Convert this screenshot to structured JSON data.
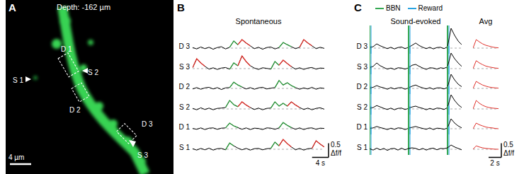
{
  "image_panel": {
    "panel": "A",
    "title": "Depth: -162 µm",
    "labels": [
      "S 1",
      "D 1",
      "S 2",
      "D 2",
      "D 3",
      "S 3"
    ],
    "scale_bar": {
      "value": 4,
      "label": "4 µm"
    }
  },
  "chart_data": [
    {
      "type": "line",
      "panel": "B",
      "title": "Spontaneous",
      "xlim": [
        0,
        32
      ],
      "ylim": [
        -0.2,
        0.8
      ],
      "tick_labels": false,
      "baseline": 0,
      "color": "#000000",
      "x": [
        0,
        1,
        2,
        3,
        4,
        5,
        6,
        7,
        8,
        9,
        10,
        11,
        12,
        13,
        14,
        15,
        16,
        17,
        18,
        19,
        20,
        21,
        22,
        23,
        24,
        25,
        26,
        27,
        28,
        29,
        30,
        31,
        32
      ],
      "rows": [
        {
          "name": "D 3",
          "values": [
            0.02,
            -0.03,
            0.04,
            -0.02,
            0.03,
            -0.04,
            0.02,
            0.05,
            -0.03,
            0.03,
            0.25,
            0.12,
            0.3,
            0.18,
            0.08,
            -0.02,
            0.03,
            -0.04,
            0.02,
            0.04,
            -0.03,
            0.02,
            0.2,
            0.12,
            0.05,
            -0.02,
            0.03,
            0.3,
            0.18,
            0.08,
            -0.02,
            0.03,
            -0.01
          ],
          "events": [
            {
              "color": "#2e9e3e",
              "x": [
                9,
                11
              ]
            },
            {
              "color": "#e0302a",
              "x": [
                11,
                14
              ]
            },
            {
              "color": "#2e9e3e",
              "x": [
                21,
                24
              ]
            },
            {
              "color": "#e0302a",
              "x": [
                26,
                29
              ]
            }
          ]
        },
        {
          "name": "S 3",
          "values": [
            0.03,
            0.35,
            0.2,
            0.08,
            -0.02,
            0.03,
            -0.03,
            0.02,
            0.04,
            -0.02,
            0.2,
            0.1,
            0.45,
            0.25,
            0.1,
            0.02,
            -0.03,
            0.03,
            0.01,
            -0.02,
            0.25,
            0.12,
            0.3,
            0.18,
            0.07,
            -0.02,
            0.03,
            -0.03,
            0.02,
            0.04,
            -0.02,
            0.02,
            0.01
          ],
          "events": [
            {
              "color": "#e0302a",
              "x": [
                0,
                3
              ]
            },
            {
              "color": "#2e9e3e",
              "x": [
                9,
                11
              ]
            },
            {
              "color": "#e0302a",
              "x": [
                11,
                14
              ]
            },
            {
              "color": "#2e9e3e",
              "x": [
                19,
                21
              ]
            },
            {
              "color": "#e0302a",
              "x": [
                21,
                24
              ]
            }
          ]
        },
        {
          "name": "D 2",
          "values": [
            -0.02,
            0.03,
            -0.03,
            0.02,
            0.04,
            -0.02,
            0.03,
            -0.04,
            0.02,
            0.03,
            0.22,
            0.12,
            0.05,
            -0.02,
            0.03,
            -0.03,
            0.02,
            0.04,
            -0.02,
            0.01,
            0.03,
            0.28,
            0.12,
            0.2,
            0.1,
            0.03,
            -0.03,
            0.02,
            -0.02,
            0.04,
            -0.03,
            0.02,
            0.0
          ],
          "events": [
            {
              "color": "#2e9e3e",
              "x": [
                9,
                12
              ]
            },
            {
              "color": "#2e9e3e",
              "x": [
                20,
                25
              ]
            }
          ]
        },
        {
          "name": "S 2",
          "values": [
            0.02,
            -0.03,
            0.04,
            -0.02,
            0.03,
            -0.03,
            0.02,
            0.03,
            0.05,
            0.3,
            0.15,
            0.08,
            0.25,
            0.14,
            0.05,
            -0.02,
            0.03,
            -0.03,
            0.02,
            0.03,
            0.25,
            0.1,
            0.2,
            0.1,
            0.25,
            0.14,
            0.05,
            -0.02,
            0.03,
            -0.03,
            0.02,
            0.04,
            -0.01
          ],
          "events": [
            {
              "color": "#2e9e3e",
              "x": [
                8,
                11
              ]
            },
            {
              "color": "#e0302a",
              "x": [
                11,
                14
              ]
            },
            {
              "color": "#2e9e3e",
              "x": [
                19,
                23
              ]
            },
            {
              "color": "#e0302a",
              "x": [
                23,
                26
              ]
            }
          ]
        },
        {
          "name": "D 1",
          "values": [
            0.01,
            -0.02,
            0.03,
            -0.03,
            0.02,
            0.03,
            -0.02,
            0.02,
            0.03,
            0.2,
            0.1,
            0.04,
            -0.02,
            0.03,
            -0.03,
            0.02,
            0.01,
            -0.03,
            0.03,
            0.02,
            -0.02,
            0.03,
            0.22,
            0.12,
            0.04,
            -0.02,
            0.03,
            -0.03,
            0.02,
            0.03,
            -0.02,
            0.02,
            0.01
          ],
          "events": [
            {
              "color": "#2e9e3e",
              "x": [
                8,
                11
              ]
            },
            {
              "color": "#2e9e3e",
              "x": [
                21,
                24
              ]
            }
          ]
        },
        {
          "name": "S 1",
          "values": [
            0.02,
            -0.03,
            0.03,
            -0.02,
            0.04,
            -0.03,
            0.02,
            0.03,
            -0.02,
            0.22,
            0.12,
            0.04,
            -0.02,
            0.03,
            -0.03,
            0.02,
            0.03,
            -0.02,
            0.02,
            0.03,
            0.25,
            0.12,
            0.35,
            0.2,
            0.08,
            -0.02,
            0.03,
            -0.03,
            0.02,
            0.03,
            0.3,
            0.18,
            0.08
          ],
          "events": [
            {
              "color": "#2e9e3e",
              "x": [
                8,
                10
              ]
            },
            {
              "color": "#2e9e3e",
              "x": [
                19,
                21
              ]
            },
            {
              "color": "#e0302a",
              "x": [
                21,
                24
              ]
            },
            {
              "color": "#e0302a",
              "x": [
                29,
                32
              ]
            }
          ]
        }
      ],
      "scale_bar": {
        "x": 4,
        "x_label": "4 s",
        "y": 0.5,
        "y_label": "0.5",
        "y_unit": "Δf/f"
      }
    },
    {
      "type": "line",
      "panel": "C",
      "title": "Sound-evoked",
      "xlim": [
        0,
        13
      ],
      "ylim": [
        -0.2,
        0.8
      ],
      "tick_labels": false,
      "baseline": 0,
      "color": "#000000",
      "x": [
        0,
        0.5,
        1,
        1.5,
        2,
        2.5,
        3,
        3.5,
        4,
        4.5,
        5,
        5.5,
        6,
        6.5,
        7,
        7.5,
        8,
        8.5,
        9,
        9.5,
        10,
        10.5,
        11,
        11.5,
        12,
        12.5,
        13
      ],
      "events": [
        {
          "name": "BBN",
          "color": "#35a853",
          "x": [
            0,
            5.5,
            11
          ]
        },
        {
          "name": "Reward",
          "color": "#29a3e0",
          "x": [
            0.2,
            5.7,
            11.2
          ]
        }
      ],
      "rows": [
        {
          "name": "D 3",
          "values": [
            0.02,
            0.05,
            0.15,
            0.08,
            0.03,
            -0.02,
            0.03,
            -0.03,
            0.02,
            0.04,
            -0.02,
            0.03,
            0.1,
            0.18,
            0.09,
            0.03,
            -0.02,
            0.03,
            -0.03,
            0.02,
            0.03,
            -0.02,
            0.05,
            0.7,
            0.45,
            0.25,
            0.12
          ]
        },
        {
          "name": "S 3",
          "values": [
            0.03,
            0.08,
            0.2,
            0.1,
            0.04,
            -0.02,
            0.02,
            -0.03,
            0.03,
            0.02,
            -0.02,
            0.03,
            0.12,
            0.15,
            0.08,
            0.02,
            -0.03,
            0.03,
            0.02,
            -0.02,
            0.03,
            0.01,
            0.06,
            0.55,
            0.35,
            0.2,
            0.08
          ]
        },
        {
          "name": "D 2",
          "values": [
            0.01,
            0.04,
            0.1,
            0.05,
            0.02,
            -0.03,
            0.03,
            -0.02,
            0.02,
            0.03,
            -0.03,
            0.02,
            0.08,
            0.12,
            0.06,
            0.02,
            -0.02,
            0.03,
            -0.03,
            0.02,
            0.02,
            -0.02,
            0.04,
            0.5,
            0.3,
            0.15,
            0.06
          ]
        },
        {
          "name": "S 2",
          "values": [
            0.02,
            0.05,
            0.12,
            0.07,
            0.02,
            -0.02,
            0.03,
            -0.03,
            0.02,
            0.03,
            -0.02,
            0.02,
            0.07,
            0.1,
            0.05,
            0.02,
            -0.03,
            0.02,
            -0.02,
            0.03,
            0.02,
            -0.02,
            0.05,
            0.5,
            0.3,
            0.15,
            0.05
          ]
        },
        {
          "name": "D 1",
          "values": [
            0.01,
            0.03,
            0.08,
            0.04,
            0.01,
            -0.03,
            0.02,
            -0.02,
            0.03,
            0.02,
            -0.03,
            0.02,
            0.05,
            0.08,
            0.04,
            0.01,
            -0.02,
            0.03,
            -0.03,
            0.02,
            0.01,
            -0.02,
            0.03,
            0.35,
            0.2,
            0.1,
            0.03
          ]
        },
        {
          "name": "S 1",
          "values": [
            0.02,
            -0.03,
            0.04,
            -0.02,
            0.03,
            -0.04,
            0.02,
            0.03,
            -0.03,
            0.04,
            -0.02,
            0.03,
            0.05,
            0.03,
            -0.02,
            0.03,
            -0.03,
            0.02,
            0.04,
            -0.02,
            0.03,
            0.02,
            0.05,
            0.15,
            0.08,
            0.03,
            -0.02
          ]
        }
      ]
    },
    {
      "type": "line",
      "title": "Avg",
      "xlim": [
        0,
        4
      ],
      "ylim": [
        -0.2,
        0.8
      ],
      "tick_labels": false,
      "baseline": 0,
      "color": "#e0302a",
      "x": [
        0,
        0.5,
        1,
        1.5,
        2,
        2.5,
        3,
        3.5,
        4
      ],
      "rows": [
        {
          "values": [
            0.0,
            0.3,
            0.22,
            0.15,
            0.1,
            0.07,
            0.04,
            0.02,
            0.01
          ]
        },
        {
          "values": [
            0.0,
            0.28,
            0.2,
            0.14,
            0.09,
            0.06,
            0.04,
            0.02,
            0.01
          ]
        },
        {
          "values": [
            0.0,
            0.25,
            0.18,
            0.12,
            0.08,
            0.05,
            0.03,
            0.02,
            0.01
          ]
        },
        {
          "values": [
            0.0,
            0.3,
            0.2,
            0.13,
            0.08,
            0.05,
            0.03,
            0.02,
            0.01
          ]
        },
        {
          "values": [
            0.0,
            0.2,
            0.14,
            0.1,
            0.06,
            0.04,
            0.03,
            0.01,
            0.0
          ]
        },
        {
          "values": [
            0.0,
            0.12,
            0.08,
            0.05,
            0.03,
            0.02,
            0.01,
            0.0,
            0.0
          ]
        }
      ],
      "scale_bar": {
        "x": 2,
        "x_label": "2 s",
        "y": 0.5,
        "y_label": "0.5",
        "y_unit": "Δf/f"
      }
    }
  ]
}
